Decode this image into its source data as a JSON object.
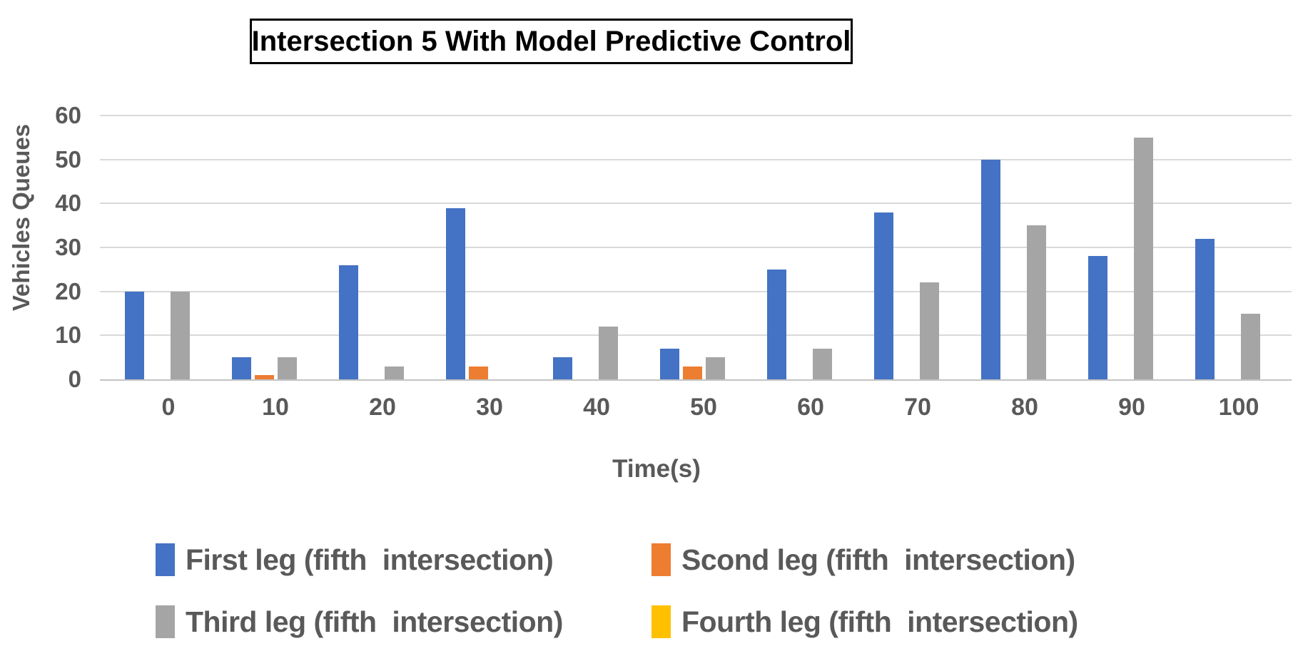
{
  "chart_data": {
    "type": "bar",
    "title": "Intersection 5 With Model Predictive Control",
    "xlabel": "Time(s)",
    "ylabel": "Vehicles Queues",
    "categories": [
      "0",
      "10",
      "20",
      "30",
      "40",
      "50",
      "60",
      "70",
      "80",
      "90",
      "100"
    ],
    "series": [
      {
        "name": "First leg (fifth  intersection)",
        "color": "#4472C4",
        "values": [
          20,
          5,
          26,
          39,
          5,
          7,
          25,
          38,
          50,
          28,
          32
        ]
      },
      {
        "name": "Scond leg (fifth  intersection)",
        "color": "#ED7D31",
        "values": [
          0,
          1,
          0,
          3,
          0,
          3,
          0,
          0,
          0,
          0,
          0
        ]
      },
      {
        "name": "Third leg (fifth  intersection)",
        "color": "#A5A5A5",
        "values": [
          20,
          5,
          3,
          0,
          12,
          5,
          7,
          22,
          35,
          55,
          15
        ]
      },
      {
        "name": "Fourth leg (fifth  intersection)",
        "color": "#FFC000",
        "values": [
          0,
          0,
          0,
          0,
          0,
          0,
          0,
          0,
          0,
          0,
          0
        ]
      }
    ],
    "ylim": [
      0,
      60
    ],
    "yticks": [
      0,
      10,
      20,
      30,
      40,
      50,
      60
    ],
    "grid": true,
    "legend_position": "bottom"
  },
  "style_colors": {
    "gridline": "#D9D9D9",
    "axis_line": "#C3C3C3",
    "axis_text": "#595959",
    "title_text": "#000000",
    "background": "#FFFFFF"
  }
}
